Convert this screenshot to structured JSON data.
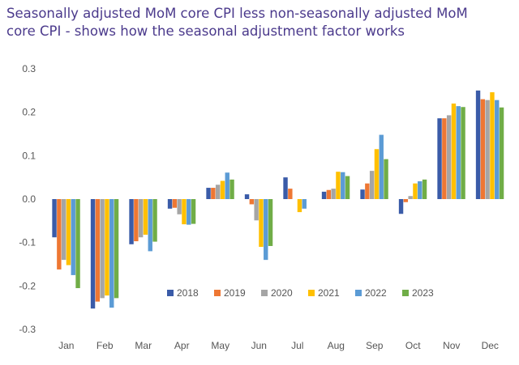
{
  "title_lines": [
    "Seasonally adjusted MoM core CPI less non-seasonally adjusted MoM",
    "core CPI - shows how the seasonal adjustment factor works"
  ],
  "chart_data": {
    "type": "bar",
    "title": "Seasonally adjusted MoM core CPI less non-seasonally adjusted MoM core CPI - shows how the seasonal adjustment factor works",
    "xlabel": "",
    "ylabel": "",
    "ylim": [
      -0.3,
      0.3
    ],
    "yticks": [
      0.3,
      0.2,
      0.1,
      0.0,
      -0.1,
      -0.2,
      -0.3
    ],
    "ytick_labels": [
      "0.3",
      "0.2",
      "0.1",
      "0.0",
      "-0.1",
      "-0.2",
      "-0.3"
    ],
    "grid": false,
    "legend_position": "bottom-center",
    "categories": [
      "Jan",
      "Feb",
      "Mar",
      "Apr",
      "May",
      "Jun",
      "Jul",
      "Aug",
      "Sep",
      "Oct",
      "Nov",
      "Dec"
    ],
    "series": [
      {
        "name": "2018",
        "color": "#3a5ba8",
        "values": [
          -0.088,
          -0.252,
          -0.104,
          -0.022,
          0.026,
          0.011,
          0.05,
          0.017,
          0.022,
          -0.034,
          0.186,
          0.25
        ]
      },
      {
        "name": "2019",
        "color": "#ee7733",
        "values": [
          -0.162,
          -0.236,
          -0.097,
          -0.02,
          0.026,
          -0.012,
          0.024,
          0.021,
          0.036,
          -0.007,
          0.186,
          0.23
        ]
      },
      {
        "name": "2020",
        "color": "#a5a5a5",
        "values": [
          -0.14,
          -0.228,
          -0.088,
          -0.035,
          0.033,
          -0.049,
          null,
          0.024,
          0.065,
          0.007,
          0.193,
          0.228
        ]
      },
      {
        "name": "2021",
        "color": "#ffc000",
        "values": [
          -0.152,
          -0.222,
          -0.082,
          -0.058,
          0.042,
          -0.11,
          -0.03,
          0.063,
          0.115,
          0.036,
          0.22,
          0.246
        ]
      },
      {
        "name": "2022",
        "color": "#5b9bd5",
        "values": [
          -0.175,
          -0.25,
          -0.12,
          -0.059,
          0.061,
          -0.14,
          -0.022,
          0.062,
          0.148,
          0.041,
          0.214,
          0.228
        ]
      },
      {
        "name": "2023",
        "color": "#70ad47",
        "values": [
          -0.205,
          -0.228,
          -0.098,
          -0.057,
          0.045,
          -0.108,
          null,
          0.053,
          0.092,
          0.045,
          0.212,
          0.211
        ]
      }
    ]
  }
}
